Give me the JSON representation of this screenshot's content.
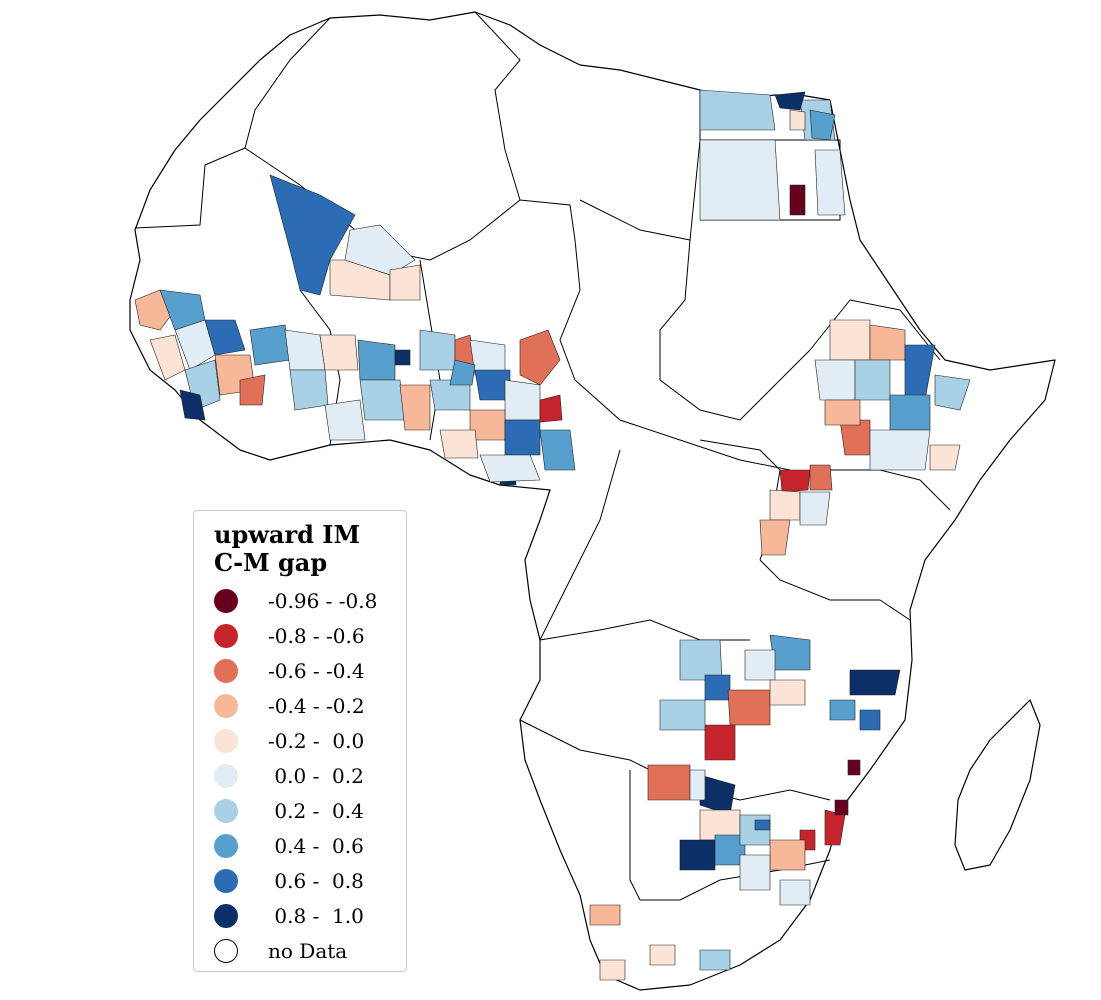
{
  "legend": {
    "title": "upward IM\nC-M gap",
    "items": [
      {
        "label": "-0.96 - -0.8",
        "color": "#67001f",
        "range": [
          -0.96,
          -0.8
        ]
      },
      {
        "label": "-0.8 - -0.6",
        "color": "#c6242d",
        "range": [
          -0.8,
          -0.6
        ]
      },
      {
        "label": "-0.6 - -0.4",
        "color": "#e07058",
        "range": [
          -0.6,
          -0.4
        ]
      },
      {
        "label": "-0.4 - -0.2",
        "color": "#f7b799",
        "range": [
          -0.4,
          -0.2
        ]
      },
      {
        "label": "-0.2 -  0.0",
        "color": "#fbe3d6",
        "range": [
          -0.2,
          0.0
        ]
      },
      {
        "label": " 0.0 -  0.2",
        "color": "#e1ecf4",
        "range": [
          0.0,
          0.2
        ]
      },
      {
        "label": " 0.2 -  0.4",
        "color": "#a9d1e6",
        "range": [
          0.2,
          0.4
        ]
      },
      {
        "label": " 0.4 -  0.6",
        "color": "#579fcd",
        "range": [
          0.4,
          0.6
        ]
      },
      {
        "label": " 0.6 -  0.8",
        "color": "#2b6cb4",
        "range": [
          0.6,
          0.8
        ]
      },
      {
        "label": " 0.8 -  1.0",
        "color": "#0b2f66",
        "range": [
          0.8,
          1.0
        ]
      },
      {
        "label": "no Data",
        "color": "#ffffff",
        "range": null
      }
    ]
  },
  "map": {
    "outline_color": "#000000",
    "background": "#ffffff"
  }
}
